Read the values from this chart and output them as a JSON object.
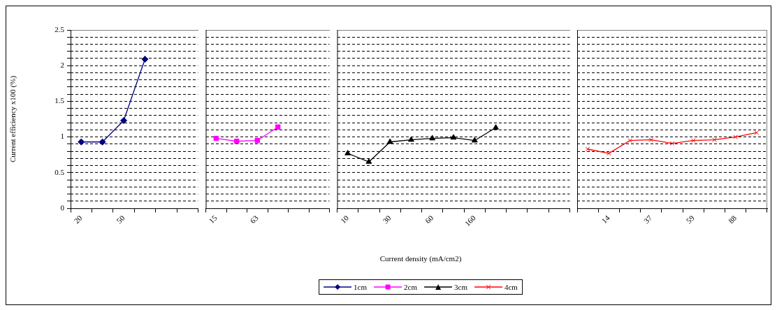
{
  "chart_data": [
    {
      "type": "line",
      "ylabel": "Current efficiency x100 (%)",
      "categories": [
        "20",
        null,
        "50",
        null,
        null,
        null
      ],
      "series": [
        {
          "name": "1cm",
          "color": "#000080",
          "marker": "diamond",
          "values": [
            0.93,
            0.93,
            1.23,
            2.09,
            null,
            null
          ]
        }
      ],
      "ylim": [
        0,
        2.5
      ],
      "yticks": [
        0,
        {
          "value": 0.1,
          "label": null
        },
        {
          "value": 0.2,
          "label": null
        },
        {
          "value": 0.3,
          "label": null
        },
        {
          "value": 0.4,
          "label": null
        },
        0.5,
        {
          "value": 0.6,
          "label": null
        },
        {
          "value": 0.7,
          "label": null
        },
        {
          "value": 0.8,
          "label": null
        },
        {
          "value": 0.9,
          "label": null
        },
        1,
        {
          "value": 1.1,
          "label": null
        },
        {
          "value": 1.2,
          "label": null
        },
        {
          "value": 1.3,
          "label": null
        },
        {
          "value": 1.4,
          "label": null
        },
        1.5,
        {
          "value": 1.6,
          "label": null
        },
        {
          "value": 1.7,
          "label": null
        },
        {
          "value": 1.8,
          "label": null
        },
        {
          "value": 1.9,
          "label": null
        },
        2,
        {
          "value": 2.1,
          "label": null
        },
        {
          "value": 2.2,
          "label": null
        },
        {
          "value": 2.3,
          "label": null
        },
        {
          "value": 2.4,
          "label": null
        },
        2.5
      ],
      "grid": "y",
      "legend": "bottom"
    },
    {
      "type": "line",
      "categories": [
        "15",
        null,
        "63",
        null,
        null,
        null
      ],
      "series": [
        {
          "name": "2cm",
          "color": "#ff00ff",
          "marker": "square",
          "values": [
            0.98,
            0.94,
            0.95,
            1.14,
            null,
            null
          ]
        }
      ],
      "ylim": [
        0,
        2.5
      ],
      "yticks": [
        0,
        {
          "value": 0.1,
          "label": null
        },
        {
          "value": 0.2,
          "label": null
        },
        {
          "value": 0.3,
          "label": null
        },
        {
          "value": 0.4,
          "label": null
        },
        0.5,
        {
          "value": 0.6,
          "label": null
        },
        {
          "value": 0.7,
          "label": null
        },
        {
          "value": 0.8,
          "label": null
        },
        {
          "value": 0.9,
          "label": null
        },
        1,
        {
          "value": 1.1,
          "label": null
        },
        {
          "value": 1.2,
          "label": null
        },
        {
          "value": 1.3,
          "label": null
        },
        {
          "value": 1.4,
          "label": null
        },
        1.5,
        {
          "value": 1.6,
          "label": null
        },
        {
          "value": 1.7,
          "label": null
        },
        {
          "value": 1.8,
          "label": null
        },
        {
          "value": 1.9,
          "label": null
        },
        2,
        {
          "value": 2.1,
          "label": null
        },
        {
          "value": 2.2,
          "label": null
        },
        {
          "value": 2.3,
          "label": null
        },
        {
          "value": 2.4,
          "label": null
        },
        2.5
      ],
      "grid": "y",
      "legend": "bottom",
      "tick_labels": "x"
    },
    {
      "type": "line",
      "xlabel": "Current density (mA/cm2)",
      "categories": [
        "10",
        null,
        "30",
        null,
        "60",
        null,
        "160",
        null,
        null,
        null,
        null
      ],
      "series": [
        {
          "name": "3cm",
          "color": "#000000",
          "marker": "triangle",
          "values": [
            0.77,
            0.65,
            0.93,
            0.96,
            0.98,
            0.99,
            0.95,
            1.13,
            null,
            null,
            null
          ]
        }
      ],
      "ylim": [
        0,
        2.5
      ],
      "yticks": [
        0,
        {
          "value": 0.1,
          "label": null
        },
        {
          "value": 0.2,
          "label": null
        },
        {
          "value": 0.3,
          "label": null
        },
        {
          "value": 0.4,
          "label": null
        },
        0.5,
        {
          "value": 0.6,
          "label": null
        },
        {
          "value": 0.7,
          "label": null
        },
        {
          "value": 0.8,
          "label": null
        },
        {
          "value": 0.9,
          "label": null
        },
        1,
        {
          "value": 1.1,
          "label": null
        },
        {
          "value": 1.2,
          "label": null
        },
        {
          "value": 1.3,
          "label": null
        },
        {
          "value": 1.4,
          "label": null
        },
        1.5,
        {
          "value": 1.6,
          "label": null
        },
        {
          "value": 1.7,
          "label": null
        },
        {
          "value": 1.8,
          "label": null
        },
        {
          "value": 1.9,
          "label": null
        },
        2,
        {
          "value": 2.1,
          "label": null
        },
        {
          "value": 2.2,
          "label": null
        },
        {
          "value": 2.3,
          "label": null
        },
        {
          "value": 2.4,
          "label": null
        },
        2.5
      ],
      "grid": "y",
      "legend": "bottom",
      "tick_labels": "x"
    },
    {
      "type": "line",
      "categories": [
        null,
        "14",
        null,
        "37",
        null,
        "59",
        null,
        "88",
        null
      ],
      "series": [
        {
          "name": "4cm",
          "color": "#ff0000",
          "marker": "cross",
          "values": [
            0.83,
            0.77,
            0.95,
            0.96,
            0.91,
            0.95,
            0.96,
            1.0,
            1.06
          ]
        }
      ],
      "ylim": [
        0,
        2.5
      ],
      "yticks": [
        0,
        {
          "value": 0.1,
          "label": null
        },
        {
          "value": 0.2,
          "label": null
        },
        {
          "value": 0.3,
          "label": null
        },
        {
          "value": 0.4,
          "label": null
        },
        0.5,
        {
          "value": 0.6,
          "label": null
        },
        {
          "value": 0.7,
          "label": null
        },
        {
          "value": 0.8,
          "label": null
        },
        {
          "value": 0.9,
          "label": null
        },
        1,
        {
          "value": 1.1,
          "label": null
        },
        {
          "value": 1.2,
          "label": null
        },
        {
          "value": 1.3,
          "label": null
        },
        {
          "value": 1.4,
          "label": null
        },
        1.5,
        {
          "value": 1.6,
          "label": null
        },
        {
          "value": 1.7,
          "label": null
        },
        {
          "value": 1.8,
          "label": null
        },
        {
          "value": 1.9,
          "label": null
        },
        2,
        {
          "value": 2.1,
          "label": null
        },
        {
          "value": 2.2,
          "label": null
        },
        {
          "value": 2.3,
          "label": null
        },
        {
          "value": 2.4,
          "label": null
        },
        2.5
      ],
      "grid": "y",
      "legend": "bottom",
      "tick_labels": "x"
    }
  ]
}
